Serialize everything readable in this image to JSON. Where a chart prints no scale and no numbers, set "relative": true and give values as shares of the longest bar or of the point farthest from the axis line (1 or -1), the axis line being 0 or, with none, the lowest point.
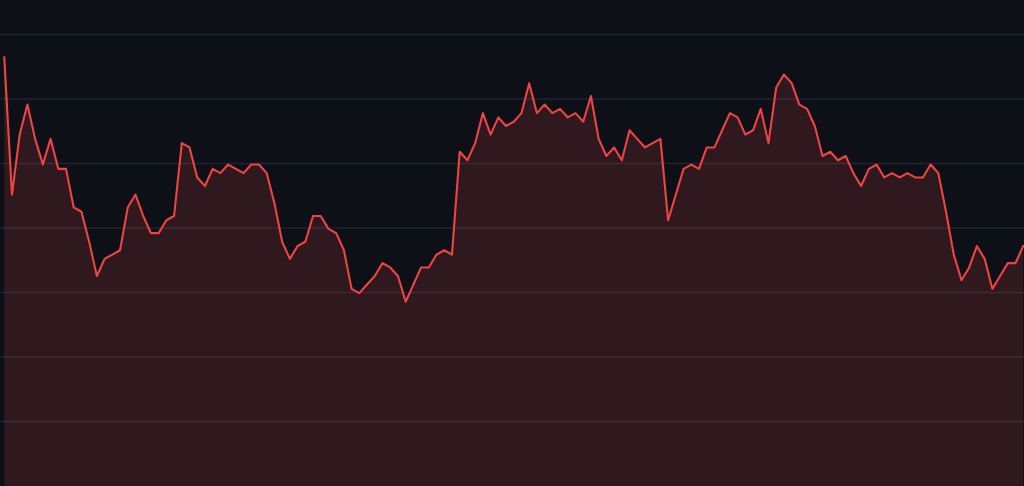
{
  "chart_data": {
    "type": "area",
    "relative": true,
    "color": "#ef4444",
    "grid": "y",
    "categories": [
      null,
      null,
      null,
      null,
      null,
      null,
      null,
      null,
      null,
      null,
      null,
      null,
      null,
      null,
      null,
      null,
      null,
      null,
      null,
      null,
      null,
      null,
      null,
      null,
      null,
      null,
      null,
      null,
      null,
      null,
      null,
      null,
      null,
      null,
      null,
      null,
      null,
      null,
      null,
      null,
      null,
      null,
      null,
      null,
      null,
      null,
      null,
      null,
      null,
      null,
      null,
      null,
      null,
      null,
      null,
      null,
      null,
      null,
      null,
      null,
      null,
      null,
      null,
      null,
      null,
      null,
      null,
      null,
      null,
      null,
      null,
      null,
      null,
      null,
      null,
      null,
      null,
      null,
      null,
      null,
      null,
      null,
      null,
      null,
      null,
      null,
      null,
      null,
      null,
      null,
      null,
      null,
      null,
      null,
      null,
      null,
      null,
      null,
      null,
      null,
      null,
      null,
      null,
      null,
      null,
      null,
      null,
      null,
      null,
      null,
      null,
      null,
      null,
      null,
      null,
      null,
      null,
      null,
      null,
      null,
      null,
      null,
      null,
      null,
      null,
      null,
      null,
      null,
      null,
      null,
      null,
      null,
      null
    ],
    "values": [
      1.0,
      0.68,
      0.82,
      0.89,
      0.81,
      0.75,
      0.81,
      0.74,
      0.74,
      0.65,
      0.64,
      0.57,
      0.49,
      0.53,
      0.54,
      0.55,
      0.65,
      0.68,
      0.63,
      0.59,
      0.59,
      0.62,
      0.63,
      0.8,
      0.79,
      0.72,
      0.7,
      0.74,
      0.73,
      0.75,
      0.74,
      0.73,
      0.75,
      0.75,
      0.73,
      0.66,
      0.57,
      0.53,
      0.56,
      0.57,
      0.63,
      0.63,
      0.6,
      0.59,
      0.55,
      0.46,
      0.45,
      0.47,
      0.49,
      0.52,
      0.51,
      0.49,
      0.43,
      0.47,
      0.51,
      0.51,
      0.54,
      0.55,
      0.54,
      0.78,
      0.76,
      0.8,
      0.87,
      0.82,
      0.86,
      0.84,
      0.85,
      0.87,
      0.94,
      0.87,
      0.89,
      0.87,
      0.88,
      0.86,
      0.87,
      0.85,
      0.91,
      0.81,
      0.77,
      0.79,
      0.76,
      0.83,
      0.81,
      0.79,
      0.8,
      0.81,
      0.62,
      0.68,
      0.74,
      0.75,
      0.74,
      0.79,
      0.79,
      0.83,
      0.87,
      0.86,
      0.82,
      0.83,
      0.88,
      0.8,
      0.93,
      0.96,
      0.94,
      0.89,
      0.88,
      0.84,
      0.77,
      0.78,
      0.76,
      0.77,
      0.73,
      0.7,
      0.74,
      0.75,
      0.72,
      0.73,
      0.72,
      0.73,
      0.72,
      0.72,
      0.75,
      0.73,
      0.64,
      0.54,
      0.48,
      0.51,
      0.56,
      0.53,
      0.46,
      0.49,
      0.52,
      0.52,
      0.56
    ]
  }
}
